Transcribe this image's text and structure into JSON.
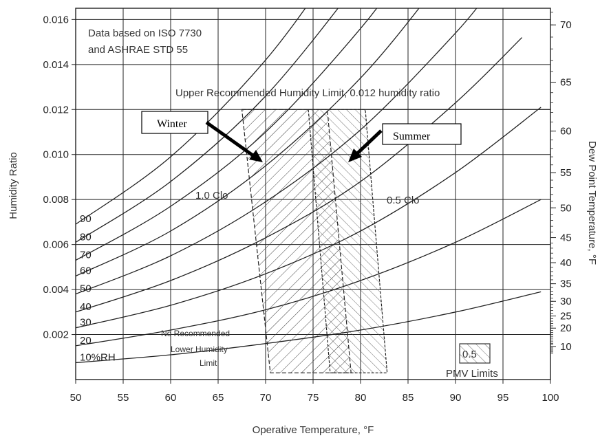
{
  "chart_data": {
    "type": "line",
    "title": "",
    "xlabel": "Operative Temperature, °F",
    "ylabel": "Humidity Ratio",
    "y2label": "Dew Point Temperature, °F",
    "xlim": [
      50,
      100
    ],
    "ylim": [
      0,
      0.0165
    ],
    "x_ticks": [
      "50",
      "55",
      "60",
      "65",
      "70",
      "75",
      "80",
      "85",
      "90",
      "95",
      "100"
    ],
    "y_ticks": [
      "0.002",
      "0.004",
      "0.006",
      "0.008",
      "0.010",
      "0.012",
      "0.014",
      "0.016"
    ],
    "y2_ticks": [
      "10",
      "20",
      "25",
      "30",
      "35",
      "40",
      "45",
      "50",
      "55",
      "60",
      "65",
      "70"
    ],
    "grid": true,
    "series": [
      {
        "name": "10%RH",
        "x": [
          50,
          60,
          70,
          80,
          90,
          99
        ],
        "y": [
          0.00075,
          0.0011,
          0.0016,
          0.0022,
          0.003,
          0.0039
        ]
      },
      {
        "name": "20",
        "x": [
          50,
          60,
          70,
          80,
          90,
          99
        ],
        "y": [
          0.0015,
          0.0022,
          0.0031,
          0.0044,
          0.0061,
          0.008
        ]
      },
      {
        "name": "30",
        "x": [
          50,
          60,
          70,
          80,
          90,
          99
        ],
        "y": [
          0.0023,
          0.0033,
          0.0047,
          0.0066,
          0.0092,
          0.0121
        ]
      },
      {
        "name": "40",
        "x": [
          50,
          60,
          70,
          80,
          90,
          97
        ],
        "y": [
          0.003,
          0.0044,
          0.0063,
          0.0088,
          0.0123,
          0.0152
        ]
      },
      {
        "name": "50",
        "x": [
          50,
          60,
          70,
          80,
          90,
          94
        ],
        "y": [
          0.0038,
          0.0055,
          0.0079,
          0.0111,
          0.0154,
          0.0175
        ]
      },
      {
        "name": "60",
        "x": [
          50,
          60,
          70,
          80,
          88,
          91
        ],
        "y": [
          0.0046,
          0.0066,
          0.0095,
          0.0134,
          0.0175,
          0.0193
        ]
      },
      {
        "name": "70",
        "x": [
          50,
          60,
          70,
          80,
          85,
          88
        ],
        "y": [
          0.0053,
          0.0077,
          0.011,
          0.0156,
          0.0185,
          0.0205
        ]
      },
      {
        "name": "80",
        "x": [
          50,
          60,
          70,
          80,
          83,
          86
        ],
        "y": [
          0.0061,
          0.0088,
          0.0126,
          0.0178,
          0.0197,
          0.0217
        ]
      },
      {
        "name": "90",
        "x": [
          50,
          60,
          70,
          78,
          81,
          84
        ],
        "y": [
          0.0069,
          0.0099,
          0.0142,
          0.0188,
          0.0207,
          0.0226
        ]
      }
    ],
    "regions": [
      {
        "name": "Winter",
        "clo": "1.0 Clo",
        "polygon": [
          [
            67.5,
            0.012
          ],
          [
            76.5,
            0.012
          ],
          [
            79.0,
            0.0003
          ],
          [
            70.5,
            0.0003
          ]
        ]
      },
      {
        "name": "Summer",
        "clo": "0.5 Clo",
        "polygon": [
          [
            74.5,
            0.012
          ],
          [
            80.5,
            0.012
          ],
          [
            82.8,
            0.0003
          ],
          [
            76.8,
            0.0003
          ]
        ]
      }
    ],
    "annotations": {
      "source_line1": "Data based on ISO 7730",
      "source_line2": "and ASHRAE STD 55",
      "upper_limit": "Upper Recommended Humidity Limit, 0.012 humidity ratio",
      "lower_line1": "No Recommended",
      "lower_line2": "Lower Humidity",
      "lower_line3": "Limit",
      "clo_winter": "1.0 Clo",
      "clo_summer": "0.5 Clo",
      "pmv_value": "0.5",
      "pmv_label": "PMV Limits",
      "winter_callout": "Winter",
      "summer_callout": "Summer"
    }
  }
}
